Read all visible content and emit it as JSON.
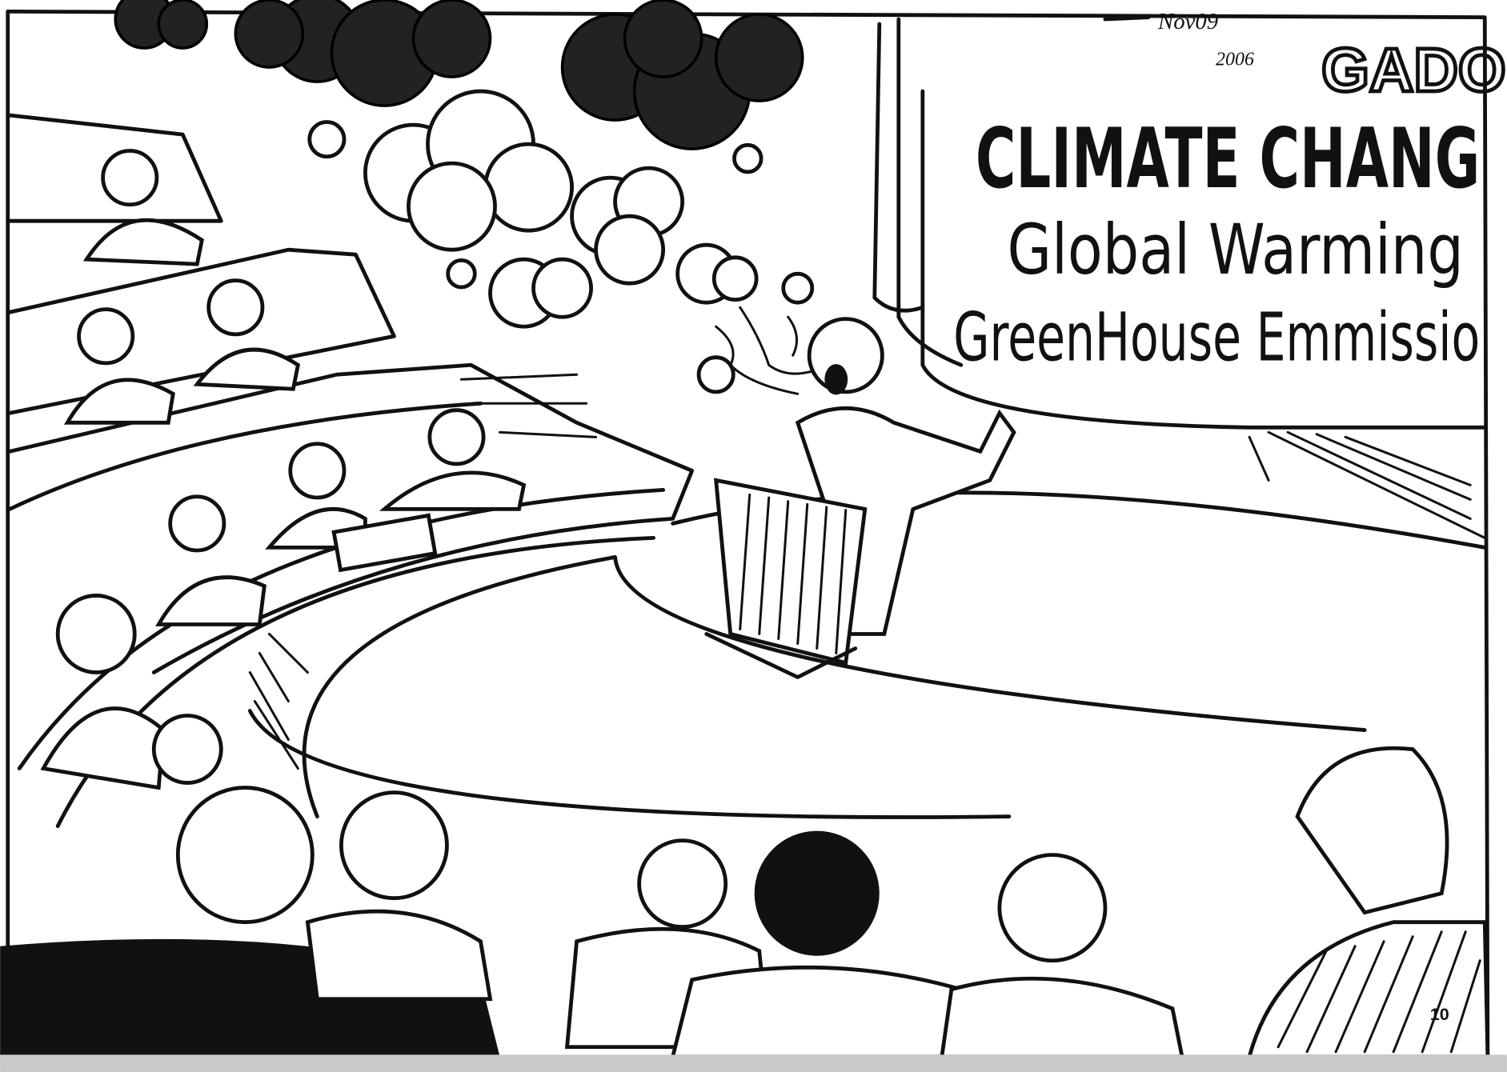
{
  "screen": {
    "line1": "CLIMATE CHANG",
    "line2": "Global Warming",
    "line3": "GreenHouse Emmissio"
  },
  "signature": {
    "artist": "GADO",
    "date_month": "Nov09",
    "date_year": "2006"
  },
  "page_number": "10"
}
